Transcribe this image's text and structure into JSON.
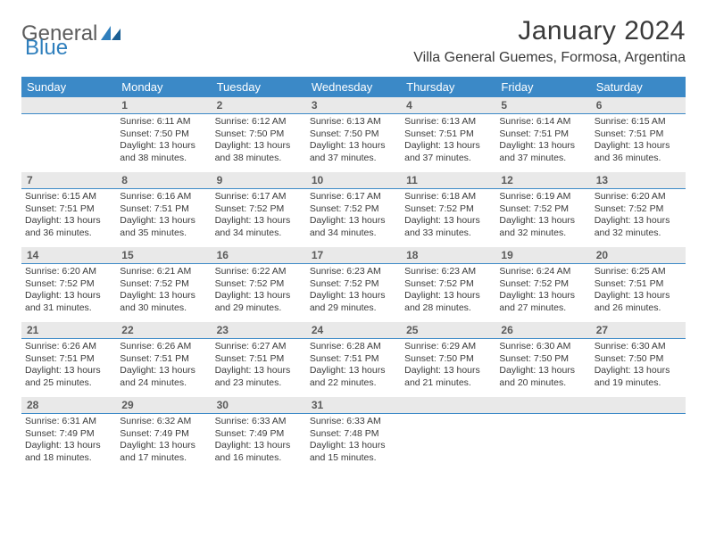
{
  "logo": {
    "text1": "General",
    "text2": "Blue"
  },
  "title": "January 2024",
  "location": "Villa General Guemes, Formosa, Argentina",
  "week_headers": [
    "Sunday",
    "Monday",
    "Tuesday",
    "Wednesday",
    "Thursday",
    "Friday",
    "Saturday"
  ],
  "colors": {
    "header_bg": "#3b89c7",
    "header_text": "#ffffff",
    "daynum_bg": "#e9e9e9",
    "daynum_border": "#3b89c7",
    "text": "#3a3a3a",
    "logo_gray": "#5c5c5c",
    "logo_blue": "#2f7fbd"
  },
  "weeks": [
    [
      {
        "day": "",
        "lines": []
      },
      {
        "day": "1",
        "lines": [
          "Sunrise: 6:11 AM",
          "Sunset: 7:50 PM",
          "Daylight: 13 hours and 38 minutes."
        ]
      },
      {
        "day": "2",
        "lines": [
          "Sunrise: 6:12 AM",
          "Sunset: 7:50 PM",
          "Daylight: 13 hours and 38 minutes."
        ]
      },
      {
        "day": "3",
        "lines": [
          "Sunrise: 6:13 AM",
          "Sunset: 7:50 PM",
          "Daylight: 13 hours and 37 minutes."
        ]
      },
      {
        "day": "4",
        "lines": [
          "Sunrise: 6:13 AM",
          "Sunset: 7:51 PM",
          "Daylight: 13 hours and 37 minutes."
        ]
      },
      {
        "day": "5",
        "lines": [
          "Sunrise: 6:14 AM",
          "Sunset: 7:51 PM",
          "Daylight: 13 hours and 37 minutes."
        ]
      },
      {
        "day": "6",
        "lines": [
          "Sunrise: 6:15 AM",
          "Sunset: 7:51 PM",
          "Daylight: 13 hours and 36 minutes."
        ]
      }
    ],
    [
      {
        "day": "7",
        "lines": [
          "Sunrise: 6:15 AM",
          "Sunset: 7:51 PM",
          "Daylight: 13 hours and 36 minutes."
        ]
      },
      {
        "day": "8",
        "lines": [
          "Sunrise: 6:16 AM",
          "Sunset: 7:51 PM",
          "Daylight: 13 hours and 35 minutes."
        ]
      },
      {
        "day": "9",
        "lines": [
          "Sunrise: 6:17 AM",
          "Sunset: 7:52 PM",
          "Daylight: 13 hours and 34 minutes."
        ]
      },
      {
        "day": "10",
        "lines": [
          "Sunrise: 6:17 AM",
          "Sunset: 7:52 PM",
          "Daylight: 13 hours and 34 minutes."
        ]
      },
      {
        "day": "11",
        "lines": [
          "Sunrise: 6:18 AM",
          "Sunset: 7:52 PM",
          "Daylight: 13 hours and 33 minutes."
        ]
      },
      {
        "day": "12",
        "lines": [
          "Sunrise: 6:19 AM",
          "Sunset: 7:52 PM",
          "Daylight: 13 hours and 32 minutes."
        ]
      },
      {
        "day": "13",
        "lines": [
          "Sunrise: 6:20 AM",
          "Sunset: 7:52 PM",
          "Daylight: 13 hours and 32 minutes."
        ]
      }
    ],
    [
      {
        "day": "14",
        "lines": [
          "Sunrise: 6:20 AM",
          "Sunset: 7:52 PM",
          "Daylight: 13 hours and 31 minutes."
        ]
      },
      {
        "day": "15",
        "lines": [
          "Sunrise: 6:21 AM",
          "Sunset: 7:52 PM",
          "Daylight: 13 hours and 30 minutes."
        ]
      },
      {
        "day": "16",
        "lines": [
          "Sunrise: 6:22 AM",
          "Sunset: 7:52 PM",
          "Daylight: 13 hours and 29 minutes."
        ]
      },
      {
        "day": "17",
        "lines": [
          "Sunrise: 6:23 AM",
          "Sunset: 7:52 PM",
          "Daylight: 13 hours and 29 minutes."
        ]
      },
      {
        "day": "18",
        "lines": [
          "Sunrise: 6:23 AM",
          "Sunset: 7:52 PM",
          "Daylight: 13 hours and 28 minutes."
        ]
      },
      {
        "day": "19",
        "lines": [
          "Sunrise: 6:24 AM",
          "Sunset: 7:52 PM",
          "Daylight: 13 hours and 27 minutes."
        ]
      },
      {
        "day": "20",
        "lines": [
          "Sunrise: 6:25 AM",
          "Sunset: 7:51 PM",
          "Daylight: 13 hours and 26 minutes."
        ]
      }
    ],
    [
      {
        "day": "21",
        "lines": [
          "Sunrise: 6:26 AM",
          "Sunset: 7:51 PM",
          "Daylight: 13 hours and 25 minutes."
        ]
      },
      {
        "day": "22",
        "lines": [
          "Sunrise: 6:26 AM",
          "Sunset: 7:51 PM",
          "Daylight: 13 hours and 24 minutes."
        ]
      },
      {
        "day": "23",
        "lines": [
          "Sunrise: 6:27 AM",
          "Sunset: 7:51 PM",
          "Daylight: 13 hours and 23 minutes."
        ]
      },
      {
        "day": "24",
        "lines": [
          "Sunrise: 6:28 AM",
          "Sunset: 7:51 PM",
          "Daylight: 13 hours and 22 minutes."
        ]
      },
      {
        "day": "25",
        "lines": [
          "Sunrise: 6:29 AM",
          "Sunset: 7:50 PM",
          "Daylight: 13 hours and 21 minutes."
        ]
      },
      {
        "day": "26",
        "lines": [
          "Sunrise: 6:30 AM",
          "Sunset: 7:50 PM",
          "Daylight: 13 hours and 20 minutes."
        ]
      },
      {
        "day": "27",
        "lines": [
          "Sunrise: 6:30 AM",
          "Sunset: 7:50 PM",
          "Daylight: 13 hours and 19 minutes."
        ]
      }
    ],
    [
      {
        "day": "28",
        "lines": [
          "Sunrise: 6:31 AM",
          "Sunset: 7:49 PM",
          "Daylight: 13 hours and 18 minutes."
        ]
      },
      {
        "day": "29",
        "lines": [
          "Sunrise: 6:32 AM",
          "Sunset: 7:49 PM",
          "Daylight: 13 hours and 17 minutes."
        ]
      },
      {
        "day": "30",
        "lines": [
          "Sunrise: 6:33 AM",
          "Sunset: 7:49 PM",
          "Daylight: 13 hours and 16 minutes."
        ]
      },
      {
        "day": "31",
        "lines": [
          "Sunrise: 6:33 AM",
          "Sunset: 7:48 PM",
          "Daylight: 13 hours and 15 minutes."
        ]
      },
      {
        "day": "",
        "lines": []
      },
      {
        "day": "",
        "lines": []
      },
      {
        "day": "",
        "lines": []
      }
    ]
  ]
}
